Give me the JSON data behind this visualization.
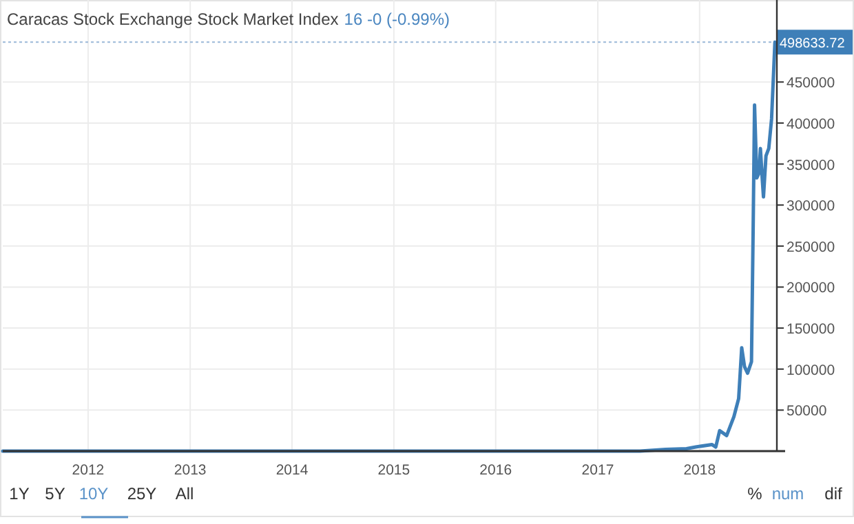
{
  "chart_data": {
    "type": "line",
    "title": "Caracas Stock Exchange Stock Market Index",
    "subtitle": "16  -0 (-0.99%)",
    "x": [
      "2011-03-01",
      "2012-01-01",
      "2013-01-01",
      "2014-01-01",
      "2015-01-01",
      "2016-01-01",
      "2017-01-01",
      "2017-06-01",
      "2017-09-01",
      "2017-11-15",
      "2017-12-18",
      "2018-02-14",
      "2018-02-28",
      "2018-03-14",
      "2018-04-08",
      "2018-05-04",
      "2018-05-21",
      "2018-06-01",
      "2018-06-11",
      "2018-06-22",
      "2018-07-06",
      "2018-07-12",
      "2018-07-17",
      "2018-07-25",
      "2018-08-02",
      "2018-08-07",
      "2018-08-14",
      "2018-08-18",
      "2018-08-27",
      "2018-09-06",
      "2018-09-16",
      "2018-09-28"
    ],
    "series": [
      {
        "color": "#3e7fb8",
        "values": [
          0,
          0,
          0,
          0,
          0,
          0,
          0,
          0,
          2000,
          3000,
          5000,
          8000,
          5000,
          25000,
          19000,
          42000,
          64000,
          126000,
          103000,
          95000,
          109000,
          271000,
          422000,
          333000,
          339000,
          369000,
          330000,
          310000,
          360000,
          369000,
          405000,
          498633.72
        ]
      }
    ],
    "xlim": [
      "2011-03-01",
      "2018-10-05"
    ],
    "xticks": [
      {
        "value": "2012-01-01",
        "label": "2012"
      },
      {
        "value": "2013-01-01",
        "label": "2013"
      },
      {
        "value": "2014-01-01",
        "label": "2014"
      },
      {
        "value": "2015-01-01",
        "label": "2015"
      },
      {
        "value": "2016-01-01",
        "label": "2016"
      },
      {
        "value": "2017-01-01",
        "label": "2017"
      },
      {
        "value": "2018-01-01",
        "label": "2018"
      }
    ],
    "ylim": [
      0,
      550000
    ],
    "yticks": [
      50000,
      100000,
      150000,
      200000,
      250000,
      300000,
      350000,
      400000,
      450000
    ],
    "ref_lines": [
      {
        "axis": "y",
        "value": 498633.72,
        "label": "498633.72",
        "color": "#9ab8d8",
        "line_style": "dotted"
      }
    ],
    "annotations": [
      "1Y",
      "5Y",
      "10Y",
      "25Y",
      "All",
      "%",
      "num",
      "dif"
    ],
    "grid": true,
    "marker": "none",
    "line_style": "solid"
  }
}
